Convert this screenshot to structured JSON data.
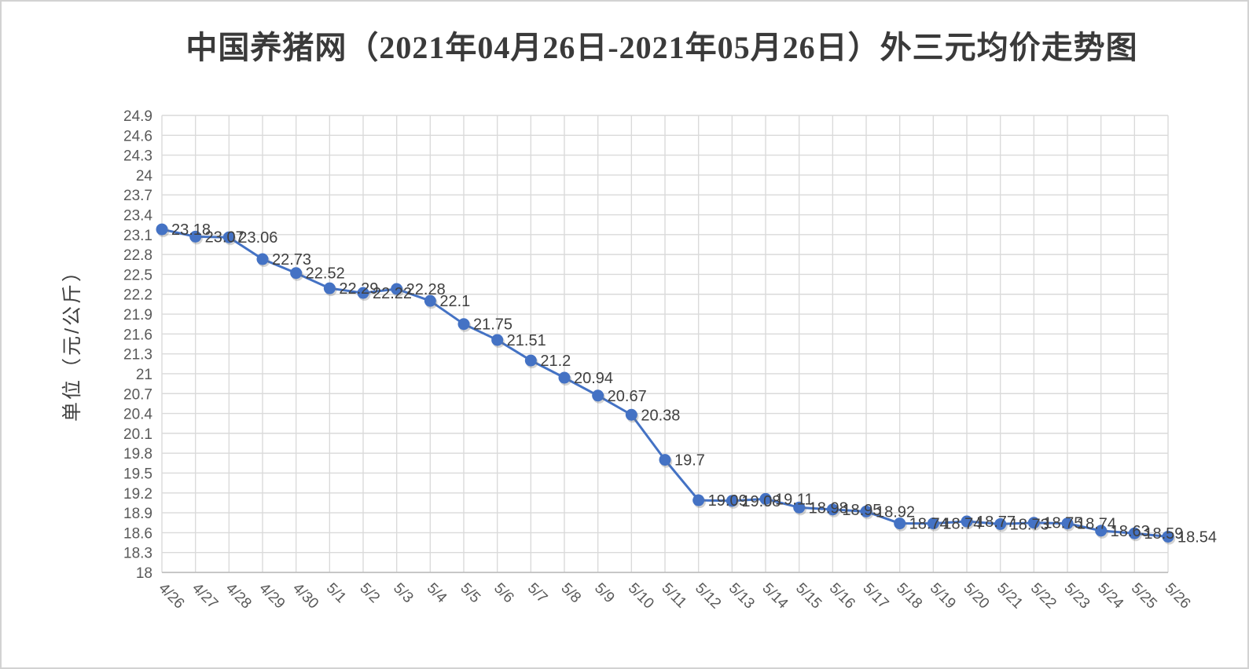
{
  "page": {
    "background": "#ffffff",
    "border_color": "#d2d2d2"
  },
  "chart_data": {
    "type": "line",
    "title": "中国养猪网（2021年04月26日-2021年05月26日）外三元均价走势图",
    "ylabel": "单位（元/公斤）",
    "xlabel": "",
    "legend": "none",
    "grid": true,
    "categories": [
      "4/26",
      "4/27",
      "4/28",
      "4/29",
      "4/30",
      "5/1",
      "5/2",
      "5/3",
      "5/4",
      "5/5",
      "5/6",
      "5/7",
      "5/8",
      "5/9",
      "5/10",
      "5/11",
      "5/12",
      "5/13",
      "5/14",
      "5/15",
      "5/16",
      "5/17",
      "5/18",
      "5/19",
      "5/20",
      "5/21",
      "5/22",
      "5/23",
      "5/24",
      "5/25",
      "5/26"
    ],
    "values": [
      23.18,
      23.07,
      23.06,
      22.73,
      22.52,
      22.29,
      22.22,
      22.28,
      22.1,
      21.75,
      21.51,
      21.2,
      20.94,
      20.67,
      20.38,
      19.7,
      19.09,
      19.08,
      19.11,
      18.98,
      18.95,
      18.92,
      18.74,
      18.74,
      18.77,
      18.73,
      18.75,
      18.74,
      18.63,
      18.59,
      18.54
    ],
    "data_labels": [
      "23.18",
      "23.07",
      "23.06",
      "22.73",
      "22.52",
      "22.29",
      "22.22",
      "22.28",
      "22.1",
      "21.75",
      "21.51",
      "21.2",
      "20.94",
      "20.67",
      "20.38",
      "19.7",
      "19.09",
      "19.08",
      "19.11",
      "18.98",
      "18.95",
      "18.92",
      "18.74",
      "18.74",
      "18.77",
      "18.73",
      "18.75",
      "18.74",
      "18.63",
      "18.59",
      "18.54"
    ],
    "ylim": [
      18,
      24.9
    ],
    "y_tick_step": 0.3,
    "y_ticks": [
      "18",
      "18.3",
      "18.6",
      "18.9",
      "19.2",
      "19.5",
      "19.8",
      "20.1",
      "20.4",
      "20.7",
      "21",
      "21.3",
      "21.6",
      "21.9",
      "22.2",
      "22.5",
      "22.8",
      "23.1",
      "23.4",
      "23.7",
      "24",
      "24.3",
      "24.6",
      "24.9"
    ],
    "colors": {
      "line": "#4472C4",
      "marker": "#4472C4",
      "marker_shadow": "rgba(110,110,110,0.30)",
      "gridline": "#DADADA",
      "axis_line": "#BFBFBF",
      "tick_label": "#595959",
      "data_label": "#404040",
      "title": "#3a3a3a"
    }
  }
}
